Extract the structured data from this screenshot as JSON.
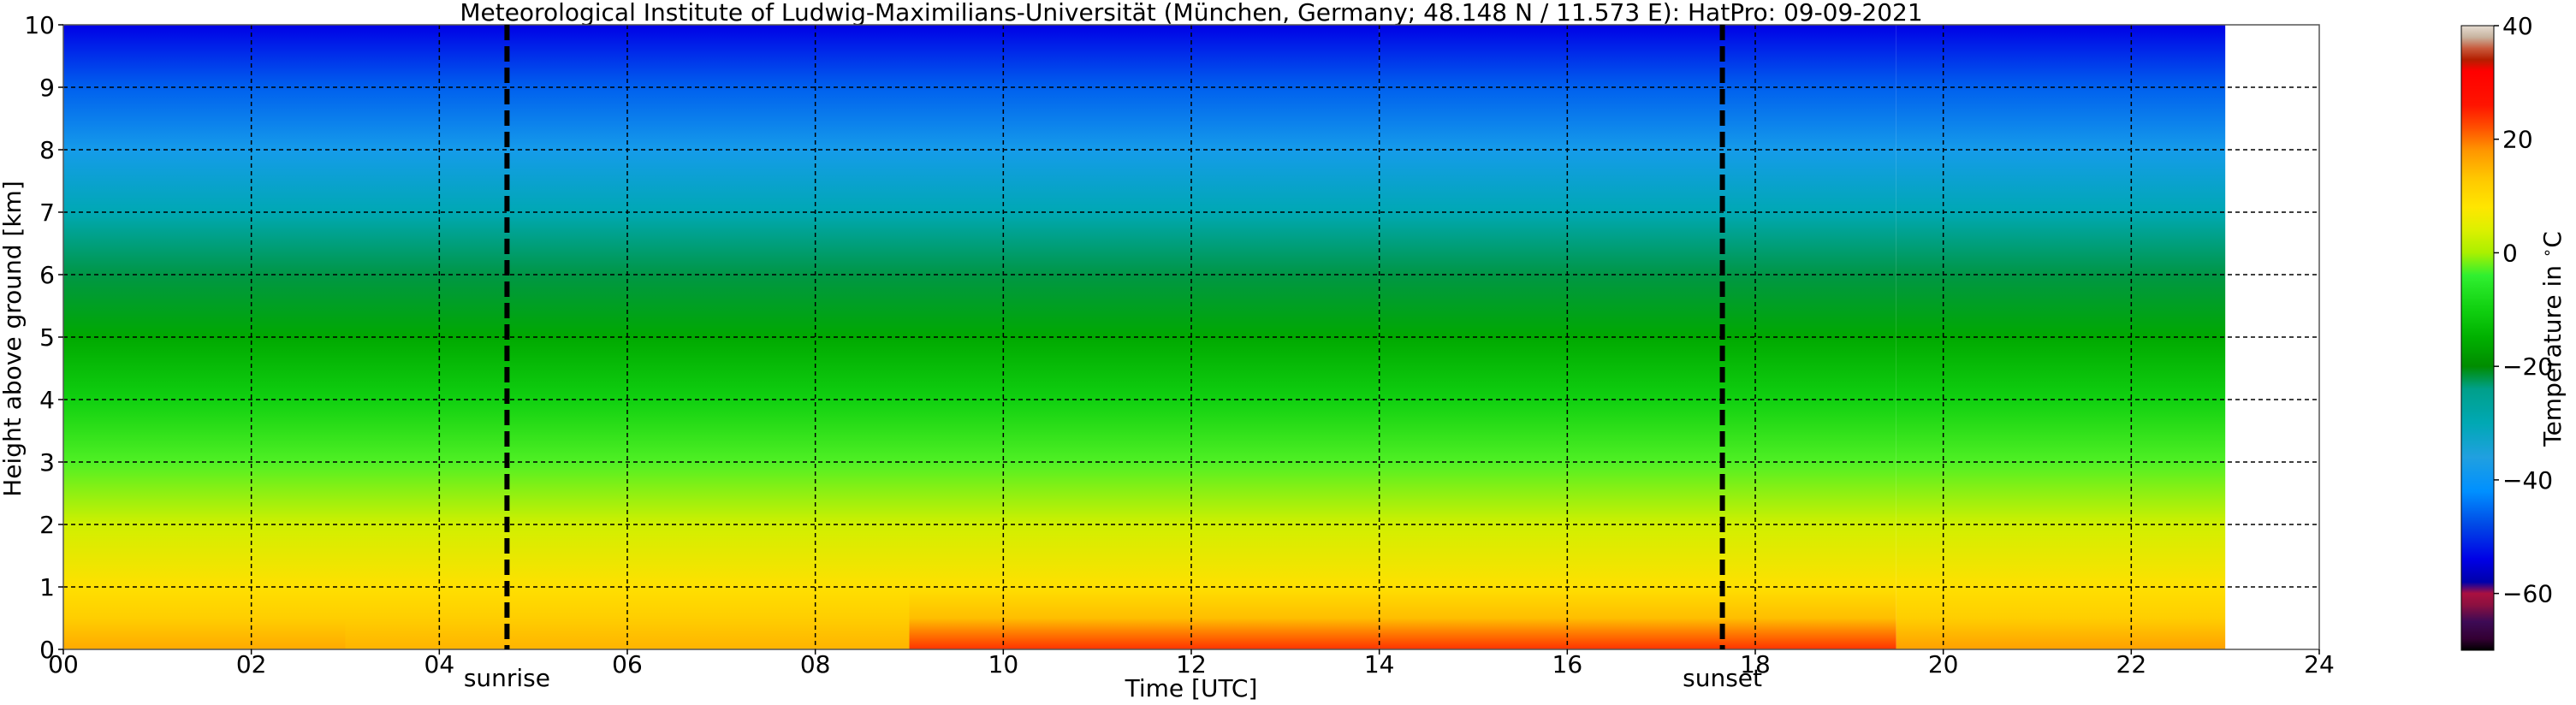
{
  "chart_data": {
    "type": "heatmap",
    "title": "Meteorological Institute of Ludwig-Maximilians-Universität (München, Germany; 48.148 N / 11.573 E):    HatPro: 09-09-2021",
    "xlabel": "Time [UTC]",
    "ylabel": "Height above ground [km]",
    "colorbar_label": "Temperature in $^\\circ$C",
    "xlim": [
      0,
      24
    ],
    "ylim": [
      0,
      10
    ],
    "data_end_time": 23,
    "x_ticks": [
      0,
      2,
      4,
      6,
      8,
      10,
      12,
      14,
      16,
      18,
      20,
      22,
      24
    ],
    "x_tick_labels": [
      "00",
      "02",
      "04",
      "06",
      "08",
      "10",
      "12",
      "14",
      "16",
      "18",
      "20",
      "22",
      "24"
    ],
    "y_ticks": [
      0,
      1,
      2,
      3,
      4,
      5,
      6,
      7,
      8,
      9,
      10
    ],
    "y_tick_labels": [
      "0",
      "1",
      "2",
      "3",
      "4",
      "5",
      "6",
      "7",
      "8",
      "9",
      "10"
    ],
    "colorbar_range": [
      -70,
      40
    ],
    "colorbar_ticks": [
      40,
      20,
      0,
      -20,
      -40,
      -60
    ],
    "colorbar_tick_labels": [
      "40",
      "20",
      "0",
      "−20",
      "−40",
      "−60"
    ],
    "grid": true,
    "annotations": [
      {
        "label": "sunrise",
        "x": 4.72
      },
      {
        "label": "sunset",
        "x": 17.65
      }
    ],
    "times": [
      0,
      2,
      4,
      6,
      8,
      10,
      12,
      14,
      16,
      18,
      20,
      22,
      23
    ],
    "heights": [
      0,
      0.5,
      1,
      2,
      3,
      4,
      5,
      6,
      7,
      8,
      9,
      10
    ],
    "temperature_profiles": [
      {
        "time": 0,
        "values": [
          16,
          12,
          9,
          3,
          -3,
          -10,
          -16,
          -22,
          -30,
          -38,
          -46,
          -54
        ]
      },
      {
        "time": 6,
        "values": [
          15,
          12,
          9,
          3,
          -3,
          -10,
          -16,
          -22,
          -30,
          -38,
          -46,
          -54
        ]
      },
      {
        "time": 12,
        "values": [
          24,
          14,
          9,
          3,
          -3,
          -10,
          -16,
          -22,
          -30,
          -38,
          -46,
          -54
        ]
      },
      {
        "time": 16,
        "values": [
          24,
          14,
          9,
          3,
          -3,
          -10,
          -16,
          -22,
          -30,
          -38,
          -46,
          -54
        ]
      },
      {
        "time": 23,
        "values": [
          17,
          12,
          9,
          3,
          -3,
          -10,
          -16,
          -22,
          -30,
          -38,
          -46,
          -54
        ]
      }
    ]
  }
}
